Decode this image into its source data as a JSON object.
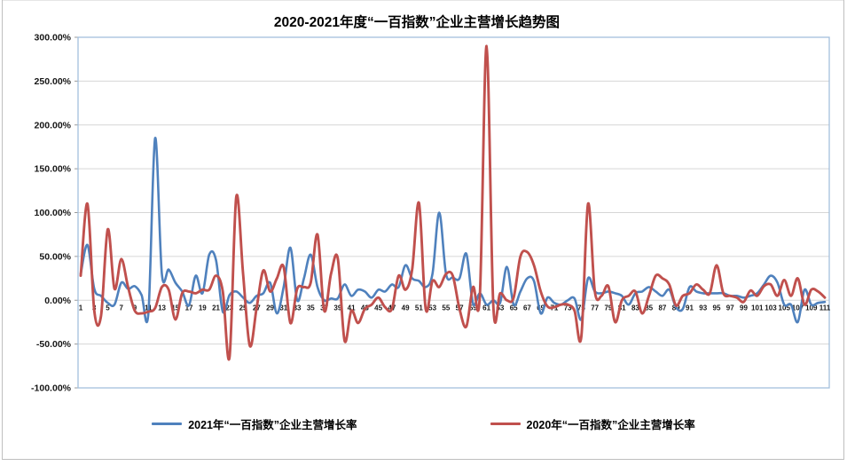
{
  "page": {
    "background": "#ffffff",
    "frame_border_color": "#bfbfbf"
  },
  "chart_data": {
    "type": "line",
    "title": "2020-2021年度“一百指数”企业主营增长趋势图",
    "xlabel": "",
    "ylabel": "",
    "ylim": [
      -100,
      300
    ],
    "y_tick_step": 50,
    "grid": true,
    "smooth_lines": true,
    "legend_position": "bottom",
    "plot_border_color": "#a3bfdd",
    "gridline_color": "#d6d6d6",
    "y_tick_labels": [
      "300.00%",
      "250.00%",
      "200.00%",
      "150.00%",
      "100.00%",
      "50.00%",
      "0.00%",
      "-50.00%",
      "-100.00%"
    ],
    "x_tick_labels": [
      "1",
      "3",
      "5",
      "7",
      "9",
      "11",
      "13",
      "15",
      "17",
      "19",
      "21",
      "23",
      "25",
      "27",
      "29",
      "31",
      "33",
      "35",
      "37",
      "39",
      "41",
      "43",
      "45",
      "47",
      "49",
      "51",
      "53",
      "55",
      "57",
      "59",
      "61",
      "63",
      "65",
      "67",
      "69",
      "71",
      "73",
      "75",
      "77",
      "79",
      "81",
      "83",
      "85",
      "87",
      "89",
      "91",
      "93",
      "95",
      "97",
      "99",
      "101",
      "103",
      "105",
      "107",
      "109",
      "111"
    ],
    "x_count": 111,
    "value_unit": "percent",
    "series": [
      {
        "name": "2021年“一百指数”企业主营增长率",
        "color": "#4f81bd",
        "values": [
          30,
          63,
          13,
          5,
          -3,
          -5,
          20,
          13,
          16,
          6,
          -15,
          185,
          30,
          35,
          20,
          10,
          -6,
          28,
          8,
          52,
          46,
          -13,
          6,
          10,
          3,
          -3,
          5,
          8,
          20,
          -15,
          15,
          60,
          0,
          25,
          52,
          15,
          0,
          2,
          2,
          18,
          5,
          12,
          10,
          3,
          12,
          10,
          18,
          15,
          40,
          25,
          22,
          15,
          30,
          100,
          30,
          26,
          25,
          53,
          -4,
          8,
          -5,
          0,
          -3,
          38,
          -5,
          10,
          25,
          22,
          -15,
          3,
          -3,
          -5,
          0,
          2,
          -22,
          25,
          10,
          8,
          10,
          8,
          5,
          -5,
          8,
          10,
          15,
          10,
          5,
          12,
          -8,
          -10,
          15,
          10,
          8,
          8,
          8,
          8,
          5,
          5,
          3,
          5,
          8,
          18,
          28,
          20,
          -5,
          -5,
          -25,
          12,
          -5,
          -3,
          -2
        ]
      },
      {
        "name": "2020年“一百指数”企业主营增长率",
        "color": "#c0504d",
        "values": [
          28,
          110,
          -12,
          -18,
          81,
          13,
          47,
          15,
          -12,
          -15,
          -13,
          -9,
          15,
          12,
          -22,
          8,
          10,
          8,
          12,
          12,
          28,
          10,
          -65,
          118,
          30,
          -52,
          -9,
          34,
          10,
          25,
          38,
          -26,
          13,
          15,
          20,
          75,
          -12,
          30,
          48,
          -46,
          -12,
          -26,
          -10,
          -5,
          3,
          -8,
          -10,
          28,
          12,
          35,
          111,
          -10,
          22,
          15,
          30,
          28,
          -10,
          -30,
          15,
          5,
          290,
          -8,
          8,
          0,
          3,
          50,
          55,
          40,
          10,
          -7,
          -8,
          -5,
          -5,
          -12,
          -42,
          110,
          10,
          5,
          16,
          -25,
          0,
          5,
          10,
          -15,
          5,
          28,
          25,
          18,
          -6,
          5,
          8,
          18,
          12,
          8,
          40,
          8,
          5,
          3,
          -2,
          11,
          5,
          16,
          18,
          5,
          23,
          5,
          25,
          -5,
          12,
          10,
          3
        ]
      }
    ]
  }
}
